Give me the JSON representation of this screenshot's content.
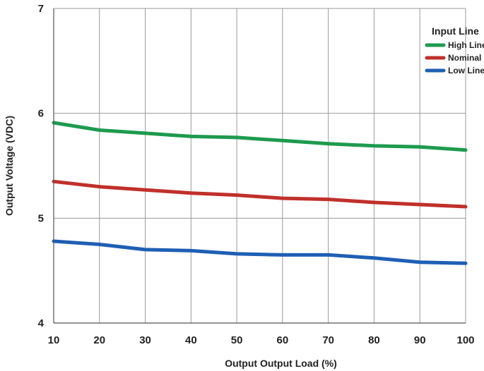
{
  "chart_data": {
    "type": "line",
    "title": "",
    "xlabel": "Output Output Load (%)",
    "ylabel": "Output Voltage (VDC)",
    "x": [
      10,
      20,
      30,
      40,
      50,
      60,
      70,
      80,
      90,
      100
    ],
    "xlim": [
      10,
      100
    ],
    "ylim": [
      4,
      7
    ],
    "xticks": [
      "10",
      "20",
      "30",
      "40",
      "50",
      "60",
      "70",
      "80",
      "90",
      "100"
    ],
    "yticks": [
      "4",
      "5",
      "6",
      "7"
    ],
    "grid": true,
    "legend": {
      "title": "Input Line",
      "placement": "top-right",
      "entries": [
        "High Line",
        "Nominal",
        "Low Line"
      ]
    },
    "series": [
      {
        "name": "High Line",
        "color": "#1e9a4e",
        "values": [
          5.91,
          5.84,
          5.81,
          5.78,
          5.77,
          5.74,
          5.71,
          5.69,
          5.68,
          5.65
        ]
      },
      {
        "name": "Nominal",
        "color": "#c0302b",
        "values": [
          5.35,
          5.3,
          5.27,
          5.24,
          5.22,
          5.19,
          5.18,
          5.15,
          5.13,
          5.11
        ]
      },
      {
        "name": "Low Line",
        "color": "#1e5fb4",
        "values": [
          4.78,
          4.75,
          4.7,
          4.69,
          4.66,
          4.65,
          4.65,
          4.62,
          4.58,
          4.57
        ]
      }
    ]
  }
}
